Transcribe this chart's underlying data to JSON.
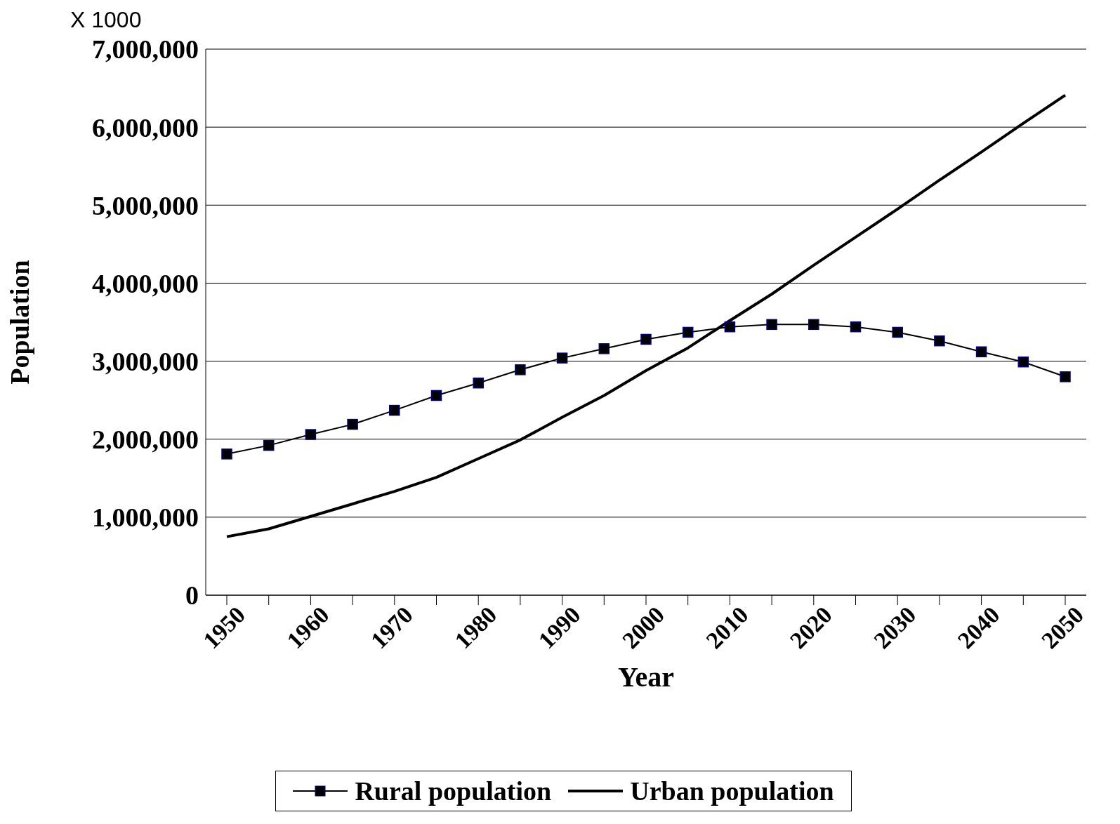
{
  "chart_data": {
    "type": "line",
    "xlabel": "Year",
    "ylabel": "Population",
    "annotations": [
      "X 1000"
    ],
    "categories": [
      "1950",
      null,
      "1960",
      null,
      "1970",
      null,
      "1980",
      null,
      "1990",
      null,
      "2000",
      null,
      "2010",
      null,
      "2020",
      null,
      "2030",
      null,
      "2040",
      null,
      "2050"
    ],
    "series": [
      {
        "name": "Rural population",
        "color": "#000000",
        "marker": "square",
        "values": [
          1810000,
          1920000,
          2060000,
          2190000,
          2370000,
          2560000,
          2720000,
          2890000,
          3040000,
          3160000,
          3280000,
          3370000,
          3440000,
          3470000,
          3470000,
          3440000,
          3370000,
          3260000,
          3120000,
          2990000,
          2800000
        ]
      },
      {
        "name": "Urban population",
        "color": "#000000",
        "marker": "none",
        "values": [
          750000,
          850000,
          1010000,
          1170000,
          1330000,
          1510000,
          1750000,
          1990000,
          2280000,
          2560000,
          2880000,
          3170000,
          3520000,
          3860000,
          4230000,
          4590000,
          4950000,
          5320000,
          5680000,
          6050000,
          6410000
        ]
      }
    ],
    "ylim": [
      0,
      7000000
    ],
    "yticks": [
      0,
      {
        "value": 1000000,
        "label": "1,000,000"
      },
      {
        "value": 2000000,
        "label": "2,000,000"
      },
      {
        "value": 3000000,
        "label": "3,000,000"
      },
      {
        "value": 4000000,
        "label": "4,000,000"
      },
      {
        "value": 5000000,
        "label": "5,000,000"
      },
      {
        "value": 6000000,
        "label": "6,000,000"
      },
      {
        "value": 7000000,
        "label": "7,000,000"
      }
    ],
    "grid": "y",
    "legend": "bottom"
  }
}
